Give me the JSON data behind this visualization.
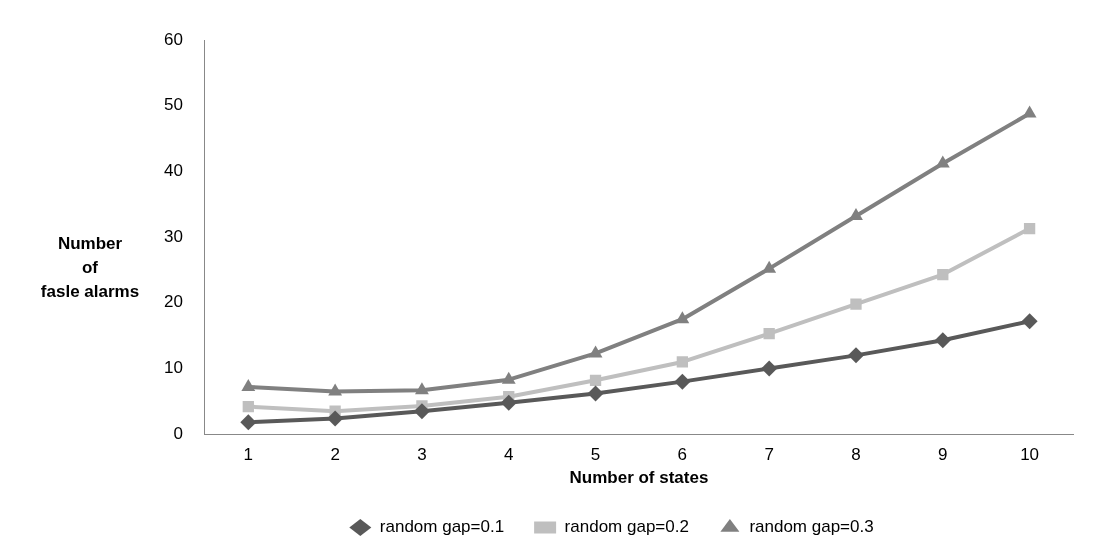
{
  "chart_data": {
    "type": "line",
    "xlabel": "Number of states",
    "ylabel": "Number\nof\nfasle alarms",
    "categories": [
      "1",
      "2",
      "3",
      "4",
      "5",
      "6",
      "7",
      "8",
      "9",
      "10"
    ],
    "series": [
      {
        "name": "random gap=0.1",
        "color": "#595959",
        "marker": "diamond",
        "values": [
          1.8,
          2.4,
          3.5,
          4.8,
          6.2,
          8,
          10,
          12,
          14.3,
          17.2
        ]
      },
      {
        "name": "random gap=0.2",
        "color": "#bfbfbf",
        "marker": "square",
        "values": [
          4.2,
          3.5,
          4.3,
          5.7,
          8.2,
          11,
          15.3,
          19.8,
          24.3,
          31.3
        ]
      },
      {
        "name": "random gap=0.3",
        "color": "#808080",
        "marker": "triangle",
        "values": [
          7.2,
          6.5,
          6.7,
          8.3,
          12.3,
          17.5,
          25.2,
          33.2,
          41.2,
          48.8
        ]
      }
    ],
    "ylim": [
      0,
      60
    ],
    "yticks": [
      0,
      10,
      20,
      30,
      40,
      50,
      60
    ],
    "grid": false,
    "legend": "bottom",
    "line_style": "solid"
  }
}
